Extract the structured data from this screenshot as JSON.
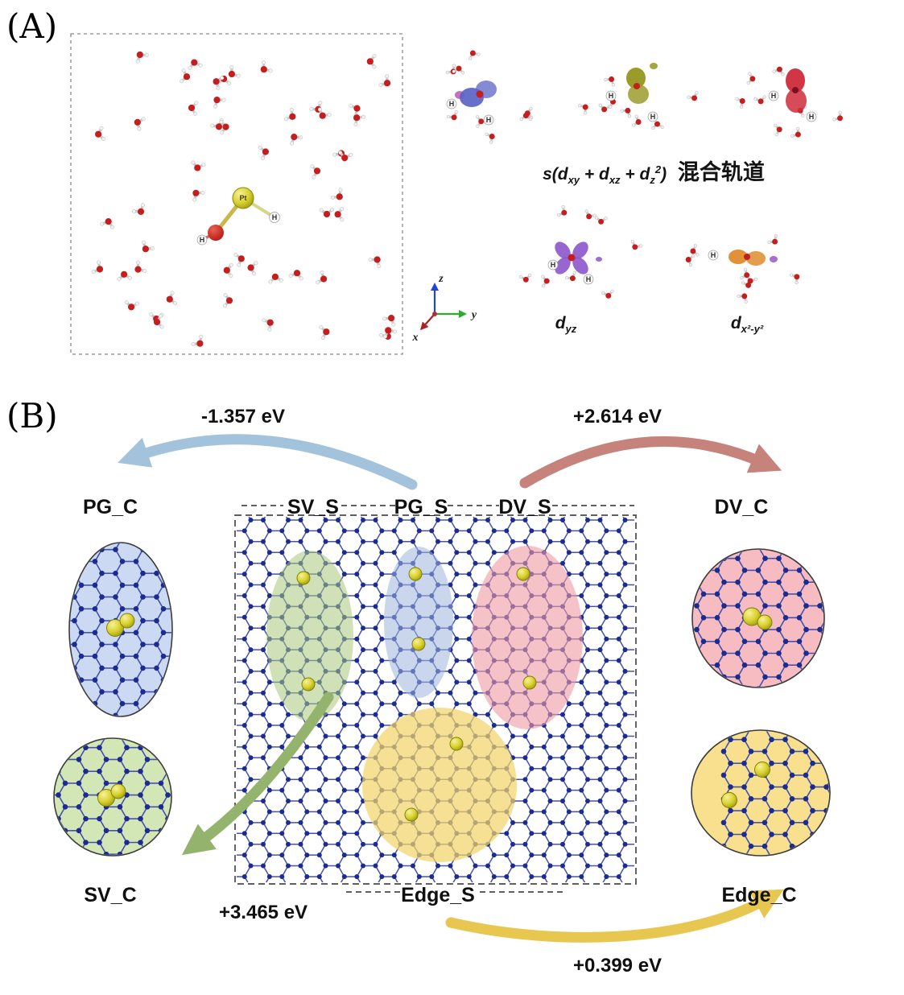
{
  "colors": {
    "lattice_bond": "#4553ae",
    "lattice_atom": "#1c2b8f",
    "site_green": "#a9c87d",
    "site_blue": "#9db4dd",
    "site_pink": "#ef9aa2",
    "site_yellow": "#f3d46a",
    "inset_blue": "#ccd9f2",
    "inset_green": "#d3e6b5",
    "inset_pink": "#f6bcc1",
    "inset_yellow": "#f8e08e",
    "arrow_blue": "#a3c3dc",
    "arrow_red": "#c5837b",
    "arrow_green": "#94b46e",
    "arrow_yellow": "#e8c750",
    "oxygen_red": "#c41e1e",
    "hydrogen_white": "#f2f2f2",
    "bond_gray": "#c9c9c9",
    "orb_blue": "#5b63c6",
    "orb_olive": "#96961e",
    "orb_red": "#cf2b3a",
    "orb_purple": "#8d55cc",
    "orb_orange": "#df8c2e",
    "axis_z": "#2244dd",
    "axis_y": "#2faa2f",
    "axis_x": "#aa2222"
  },
  "panel_a": {
    "label": "(A)",
    "pt_label": "Pt",
    "h_label": "H",
    "axes": {
      "x": "x",
      "y": "y",
      "z": "z"
    },
    "orbitals": {
      "mixed": {
        "pre": "s(d",
        "sub1": "xy",
        "mid1": " + d",
        "sub2": "xz",
        "mid2": " + d",
        "sub3": "z",
        "sup3": "2",
        "post": ") ",
        "cjk": "混合轨道"
      },
      "dyz": {
        "pre": "d",
        "sub": "yz"
      },
      "dx2y2": {
        "pre": "d",
        "sub": "x²-y²"
      }
    }
  },
  "panel_b": {
    "label": "(B)",
    "energies": {
      "pg": "-1.357 eV",
      "dv": "+2.614 eV",
      "sv": "+3.465 eV",
      "edge": "+0.399 eV"
    },
    "sites": {
      "pg_c": "PG_C",
      "sv_s": "SV_S",
      "pg_s": "PG_S",
      "dv_s": "DV_S",
      "dv_c": "DV_C",
      "sv_c": "SV_C",
      "edge_s": "Edge_S",
      "edge_c": "Edge_C"
    }
  }
}
